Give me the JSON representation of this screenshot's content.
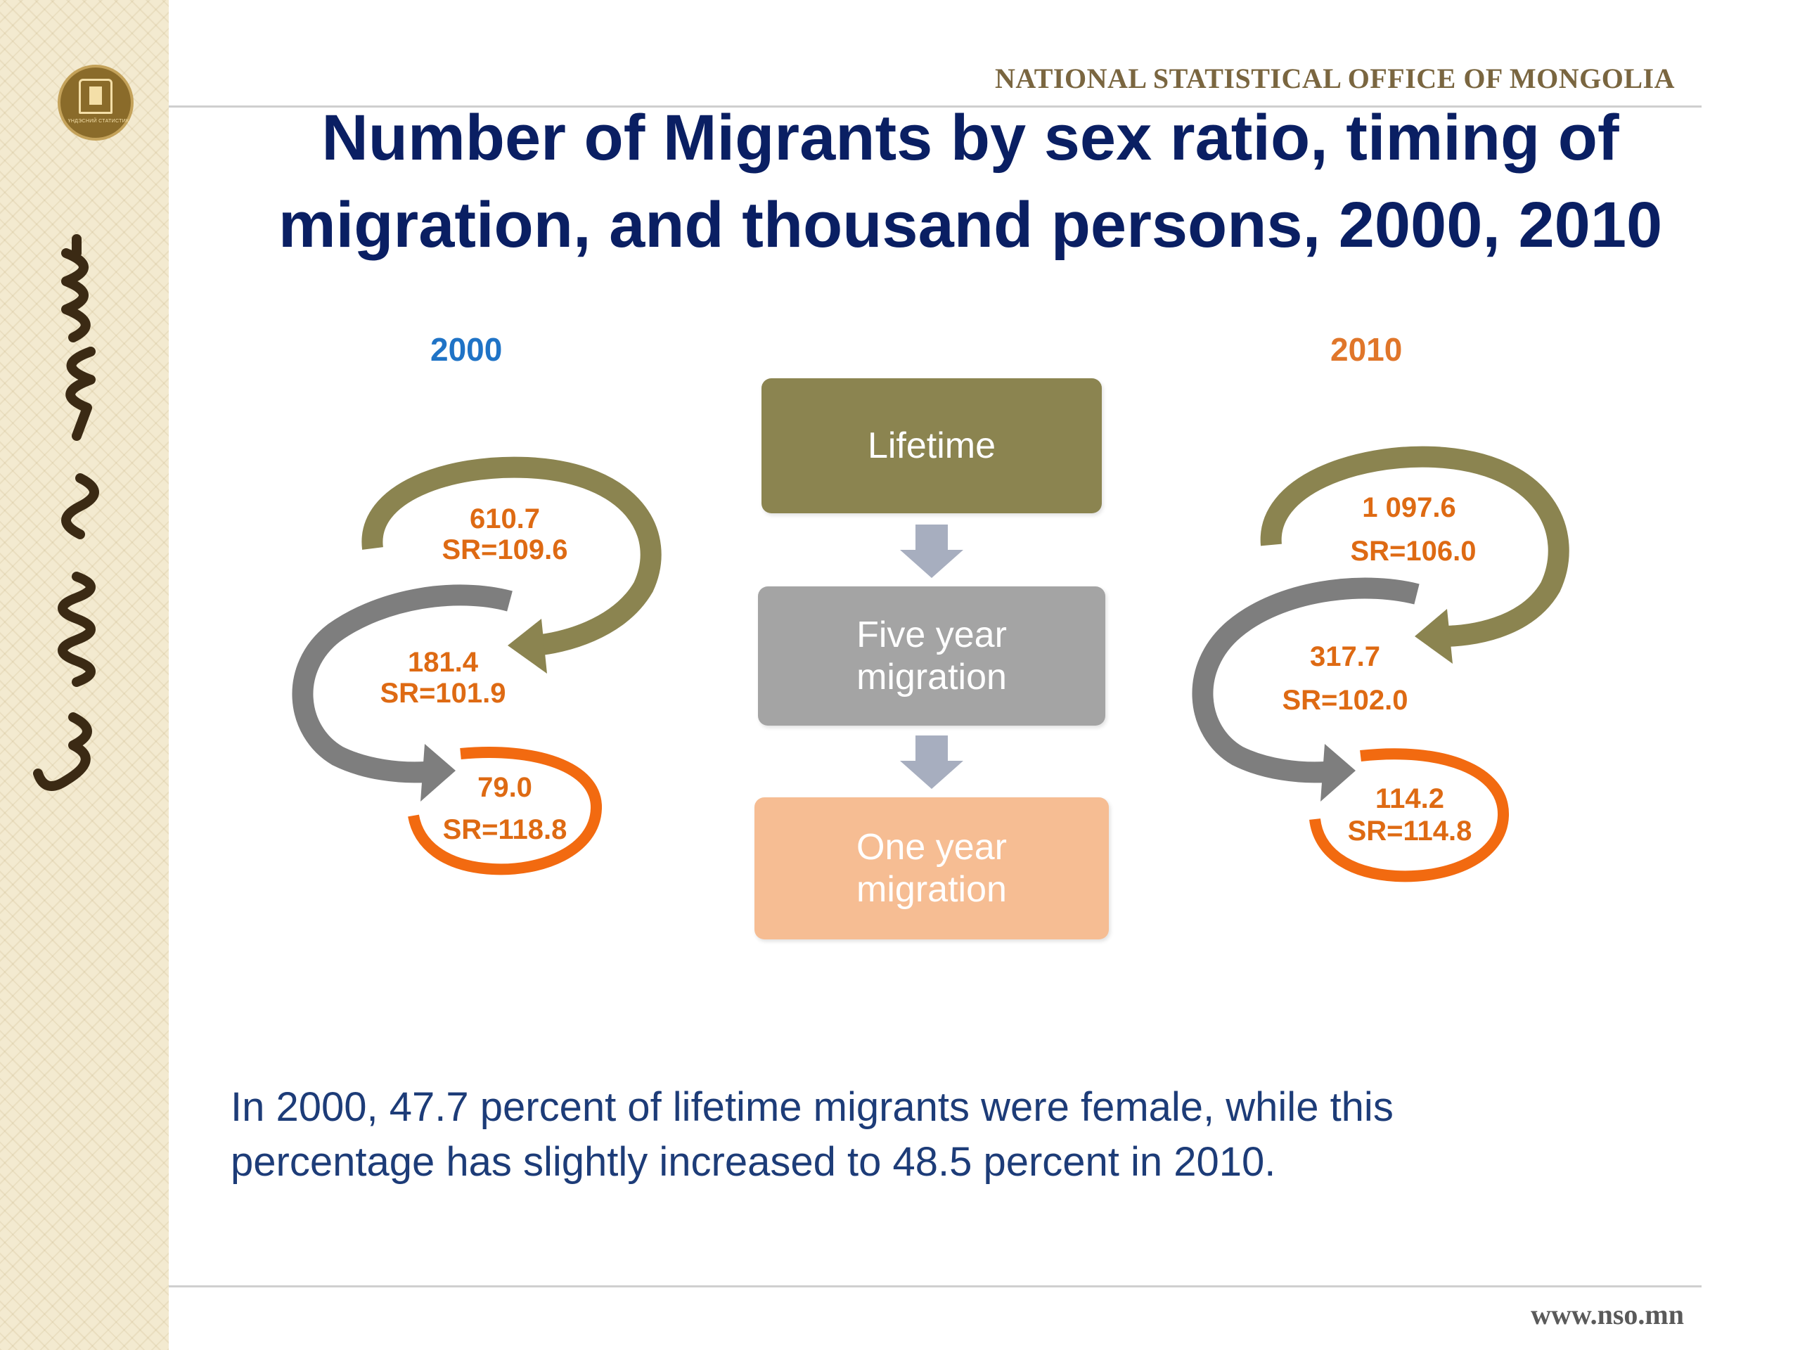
{
  "header": {
    "organization": "NATIONAL STATISTICAL OFFICE OF MONGOLIA",
    "logo_text": "ҮНДЭСНИЙ СТАТИСТИК",
    "title_line1": "Number of Migrants by sex ratio, timing of",
    "title_line2": "migration, and thousand persons, 2000, 2010"
  },
  "flow": {
    "lifetime_label": "Lifetime",
    "five_year_line1": "Five year",
    "five_year_line2": "migration",
    "one_year_line1": "One year",
    "one_year_line2": "migration"
  },
  "year_2000": {
    "label": "2000",
    "lifetime_value": "610.7",
    "lifetime_sr": "SR=109.6",
    "five_year_value": "181.4",
    "five_year_sr": "SR=101.9",
    "one_year_value": "79.0",
    "one_year_sr": "SR=118.8"
  },
  "year_2010": {
    "label": "2010",
    "lifetime_value": "1 097.6",
    "lifetime_sr": "SR=106.0",
    "five_year_value": "317.7",
    "five_year_sr": "SR=102.0",
    "one_year_value": "114.2",
    "one_year_sr": "SR=114.8"
  },
  "caption": {
    "line1": "In 2000, 47.7 percent of lifetime migrants were female, while this",
    "line2": "percentage has slightly increased to 48.5 percent in 2010."
  },
  "footer": {
    "url": "www.nso.mn"
  },
  "colors": {
    "title": "#0a1f63",
    "lifetime_olive": "#8b8450",
    "five_year_gray": "#a4a4a4",
    "one_year_peach": "#f6bd93",
    "value_orange": "#de6a13",
    "ring_orange": "#f26a10",
    "year_2000_blue": "#1f73c6",
    "year_2010_orange": "#e0762a"
  }
}
